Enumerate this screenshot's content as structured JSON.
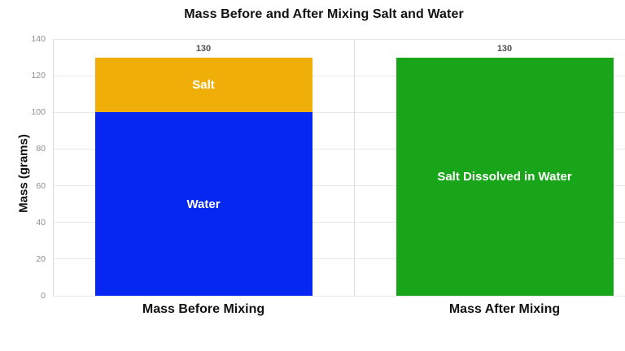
{
  "chart_data": {
    "type": "bar",
    "stacked": true,
    "title": "Mass Before and After Mixing Salt and Water",
    "xlabel": "",
    "ylabel": "Mass (grams)",
    "ylim": [
      0,
      140
    ],
    "yticks": [
      0,
      20,
      40,
      60,
      80,
      100,
      120,
      140
    ],
    "grid": "horizontal gridlines + vertical category separator, light gray",
    "legend": "none",
    "categories": [
      "Mass Before Mixing",
      "Mass After Mixing"
    ],
    "bars": [
      {
        "category": "Mass Before Mixing",
        "total": 130,
        "total_label": "130",
        "segments": [
          {
            "label": "Water",
            "value": 100,
            "color": "#0627F2"
          },
          {
            "label": "Salt",
            "value": 30,
            "color": "#EFAF08"
          }
        ]
      },
      {
        "category": "Mass After Mixing",
        "total": 130,
        "total_label": "130",
        "segments": [
          {
            "label": "Salt Dissolved in Water",
            "value": 130,
            "color": "#19A51A"
          }
        ]
      }
    ]
  },
  "colors": {
    "water_blue": "#0627F2",
    "salt_gold": "#EFAF08",
    "mixed_green": "#19A51A",
    "gridline": "#E8E8E8",
    "axis_line": "#DCDCDC",
    "tick_label": "#8E8E8E",
    "value_label": "#4F4F4F",
    "heading_text": "#111111",
    "segment_label_text": "#FFFFFF",
    "background": "#FFFFFF"
  }
}
